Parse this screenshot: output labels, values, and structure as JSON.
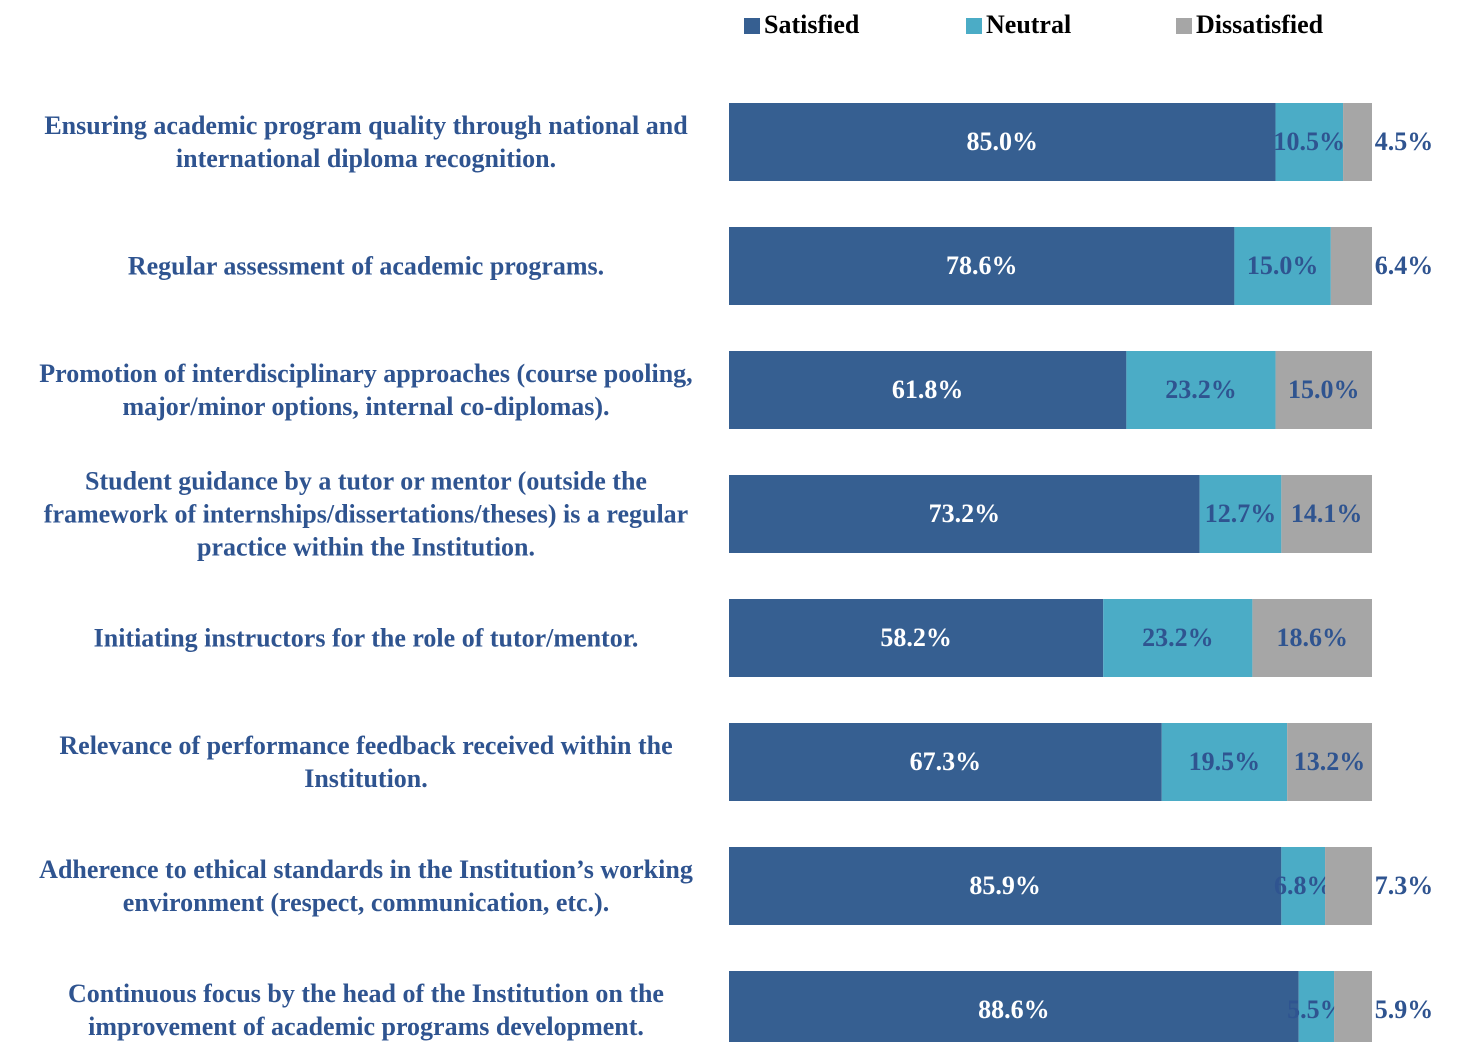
{
  "chart_data": {
    "type": "stacked-barh",
    "categories": [
      "Ensuring academic program quality through national and international diploma recognition.",
      "Regular assessment of academic programs.",
      "Promotion of interdisciplinary approaches (course pooling, major/minor options, internal co-diplomas).",
      "Student guidance by a tutor or mentor (outside the framework of internships/dissertations/theses) is a regular practice within the Institution.",
      "Initiating instructors for the role of tutor/mentor.",
      "Relevance of performance feedback received within the Institution.",
      "Adherence to ethical standards in the Institution’s working environment (respect, communication, etc.).",
      "Continuous focus by the head of the Institution on the improvement of academic programs development."
    ],
    "series": [
      {
        "name": "Satisfied",
        "color": "#365f91",
        "values": [
          85.0,
          78.6,
          61.8,
          73.2,
          58.2,
          67.3,
          85.9,
          88.6
        ],
        "value_labels": [
          "85.0%",
          "78.6%",
          "61.8%",
          "73.2%",
          "58.2%",
          "67.3%",
          "85.9%",
          "88.6%"
        ]
      },
      {
        "name": "Neutral",
        "color": "#4bacc6",
        "values": [
          10.5,
          15.0,
          23.2,
          12.7,
          23.2,
          19.5,
          6.8,
          5.5
        ],
        "value_labels": [
          "10.5%",
          "15.0%",
          "23.2%",
          "12.7%",
          "23.2%",
          "19.5%",
          "6.8%",
          "5.5%"
        ]
      },
      {
        "name": "Dissatisfied",
        "color": "#a6a6a6",
        "values": [
          4.5,
          6.4,
          15.0,
          14.1,
          18.6,
          13.2,
          7.3,
          5.9
        ],
        "value_labels": [
          "4.5%",
          "6.4%",
          "15.0%",
          "14.1%",
          "18.6%",
          "13.2%",
          "7.3%",
          "5.9%"
        ]
      }
    ],
    "xlim": [
      0,
      100
    ],
    "legend": "top"
  }
}
